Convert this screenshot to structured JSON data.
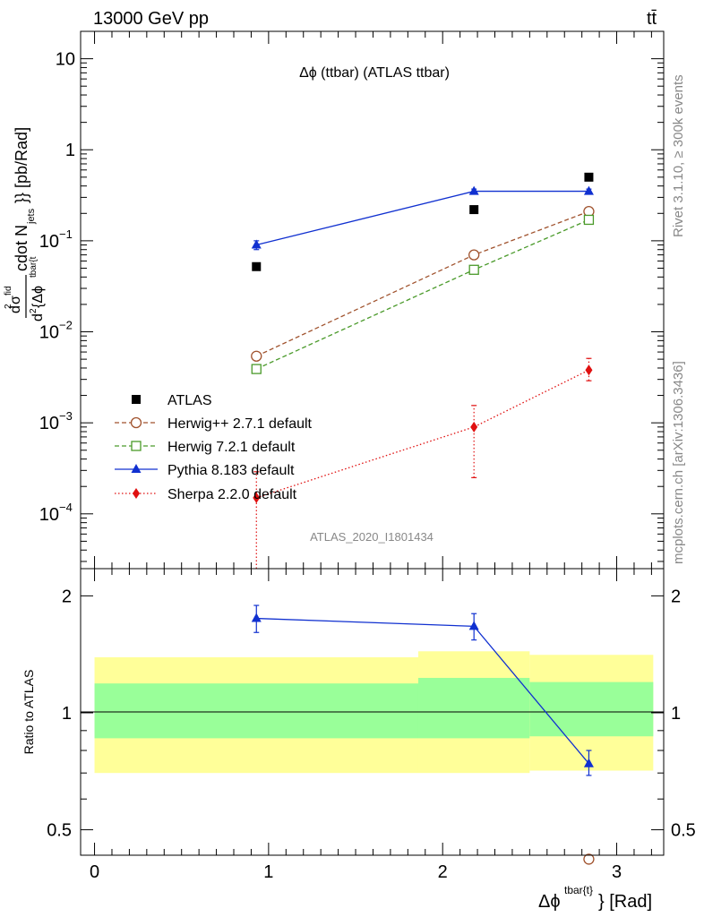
{
  "header": {
    "energy_label": "13000 GeV pp",
    "process_label": "tt̄"
  },
  "side": {
    "rivet_label": "Rivet 3.1.10, ≥ 300k events",
    "mcplots_label": "mcplots.cern.ch [arXiv:1306.3436]"
  },
  "watermark": "ATLAS_2020_I1801434",
  "chart_data": [
    {
      "type": "line",
      "panel": "main",
      "title": "Δϕ (ttbar) (ATLAS ttbar)",
      "ylabel": "d²σ^fid / d² {Δϕ^tbar{t}} cdot N_jets}} [pb/Rad]",
      "yscale": "log",
      "ylim": [
        2.5e-05,
        20
      ],
      "xlim": [
        -0.08,
        3.27
      ],
      "y_ticks": [
        {
          "v": 0.0001,
          "mant": "10",
          "exp": "−4"
        },
        {
          "v": 0.001,
          "mant": "10",
          "exp": "−3"
        },
        {
          "v": 0.01,
          "mant": "10",
          "exp": "−2"
        },
        {
          "v": 0.1,
          "mant": "10",
          "exp": "−1"
        },
        {
          "v": 1,
          "mant": "1",
          "exp": ""
        },
        {
          "v": 10,
          "mant": "10",
          "exp": ""
        }
      ],
      "x": [
        0.93,
        2.18,
        2.84
      ],
      "series": [
        {
          "name": "ATLAS",
          "marker": "square",
          "color": "#000000",
          "values": [
            0.052,
            0.22,
            0.5
          ]
        },
        {
          "name": "Herwig++ 2.7.1 default",
          "marker": "circle",
          "color": "#a0522d",
          "dash": "dashed",
          "values": [
            0.0054,
            0.07,
            0.21
          ]
        },
        {
          "name": "Herwig 7.2.1 default",
          "marker": "open-square",
          "color": "#4a9a2a",
          "dash": "dashed",
          "values": [
            0.0039,
            0.048,
            0.17
          ]
        },
        {
          "name": "Pythia 8.183 default",
          "marker": "triangle",
          "color": "#1030d0",
          "dash": "solid",
          "values": [
            0.09,
            0.35,
            0.35
          ],
          "err_lo": [
            0.08,
            0.33,
            0.33
          ],
          "err_hi": [
            0.1,
            0.37,
            0.37
          ]
        },
        {
          "name": "Sherpa 2.2.0 default",
          "marker": "diamond",
          "color": "#e01010",
          "dash": "dotted",
          "values": [
            0.00015,
            0.0009,
            0.0038
          ],
          "err_lo": [
            1e-05,
            0.00025,
            0.0029
          ],
          "err_hi": [
            0.00029,
            0.00155,
            0.0051
          ]
        }
      ]
    },
    {
      "type": "line",
      "panel": "ratio",
      "ylabel": "Ratio to ATLAS",
      "xlabel": "Δϕ^tbar{t}} [Rad]",
      "yscale": "log",
      "ylim": [
        0.43,
        2.35
      ],
      "y_ticks": [
        0.5,
        1,
        2
      ],
      "x_ticks": [
        0,
        1,
        2,
        3
      ],
      "xlim": [
        -0.08,
        3.27
      ],
      "reference_line": 1,
      "bands": [
        {
          "x0": 0.0,
          "x1": 1.86,
          "yellow": [
            0.7,
            1.39
          ],
          "green": [
            0.86,
            1.19
          ]
        },
        {
          "x0": 1.86,
          "x1": 2.5,
          "yellow": [
            0.7,
            1.44
          ],
          "green": [
            0.86,
            1.23
          ]
        },
        {
          "x0": 2.5,
          "x1": 3.21,
          "yellow": [
            0.71,
            1.41
          ],
          "green": [
            0.87,
            1.2
          ]
        }
      ],
      "series": [
        {
          "name": "Pythia 8.183 default",
          "marker": "triangle",
          "color": "#1030d0",
          "x": [
            0.93,
            2.18,
            2.84
          ],
          "values": [
            1.75,
            1.67,
            0.74
          ],
          "err_lo": [
            1.61,
            1.54,
            0.69
          ],
          "err_hi": [
            1.89,
            1.8,
            0.8
          ]
        },
        {
          "name": "Herwig++ 2.7.1 default",
          "marker": "circle",
          "color": "#a0522d",
          "x": [
            2.84
          ],
          "values": [
            0.42
          ]
        }
      ]
    }
  ]
}
